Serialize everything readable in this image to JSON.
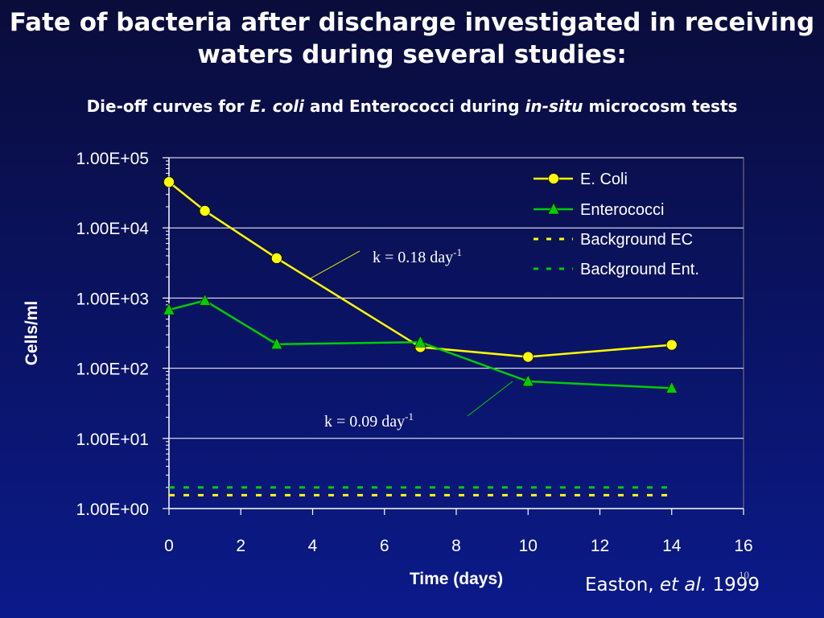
{
  "slide": {
    "title": "Fate of bacteria after discharge investigated in receiving waters during several studies:",
    "subtitle_parts": [
      "Die-off curves for ",
      "E. coli",
      " and Enterococci during ",
      "in-situ",
      " microcosm tests"
    ],
    "citation_author": "Easton, ",
    "citation_etal": "et al.",
    "citation_year": " 1999",
    "slide_number": "10"
  },
  "colors": {
    "ecoli": "#ffff00",
    "ecoli_marker": "#ffff00",
    "enterococci": "#00cc00",
    "background_ec": "#ffff00",
    "background_ent": "#00cc00",
    "gridline": "#ffffff",
    "axis": "#ffffff"
  },
  "chart_data": {
    "type": "line",
    "xlabel": "Time (days)",
    "ylabel": "Cells/ml",
    "xlim": [
      0,
      16
    ],
    "ylim_log10": [
      0,
      5
    ],
    "y_scale": "log",
    "x_ticks": [
      "0",
      "2",
      "4",
      "6",
      "8",
      "10",
      "12",
      "14",
      "16"
    ],
    "y_ticks": [
      "1.00E+00",
      "1.00E+01",
      "1.00E+02",
      "1.00E+03",
      "1.00E+04",
      "1.00E+05"
    ],
    "grid": "horizontal major",
    "legend_position": "top-right",
    "series": [
      {
        "name": "E. Coli",
        "marker": "circle",
        "line": "solid",
        "color_key": "ecoli",
        "x": [
          0,
          1,
          3,
          7,
          10,
          14
        ],
        "y": [
          45000,
          17500,
          3700,
          200,
          145,
          215
        ]
      },
      {
        "name": "Enterococci",
        "marker": "triangle",
        "line": "solid",
        "color_key": "enterococci",
        "x": [
          0,
          1,
          3,
          7,
          10,
          14
        ],
        "y": [
          680,
          920,
          220,
          235,
          65,
          52
        ]
      },
      {
        "name": "Background EC",
        "marker": "none",
        "line": "dashed",
        "color_key": "background_ec",
        "x": [
          0,
          14
        ],
        "y": [
          1.55,
          1.55
        ]
      },
      {
        "name": "Background Ent.",
        "marker": "none",
        "line": "dashed",
        "color_key": "background_ent",
        "x": [
          0,
          14
        ],
        "y": [
          2.0,
          2.0
        ]
      }
    ],
    "annotations": [
      {
        "text": "k = 0.18 day",
        "sup": "-1",
        "points_to_series": "E. Coli"
      },
      {
        "text": "k = 0.09 day",
        "sup": "-1",
        "points_to_series": "Enterococci"
      }
    ]
  }
}
